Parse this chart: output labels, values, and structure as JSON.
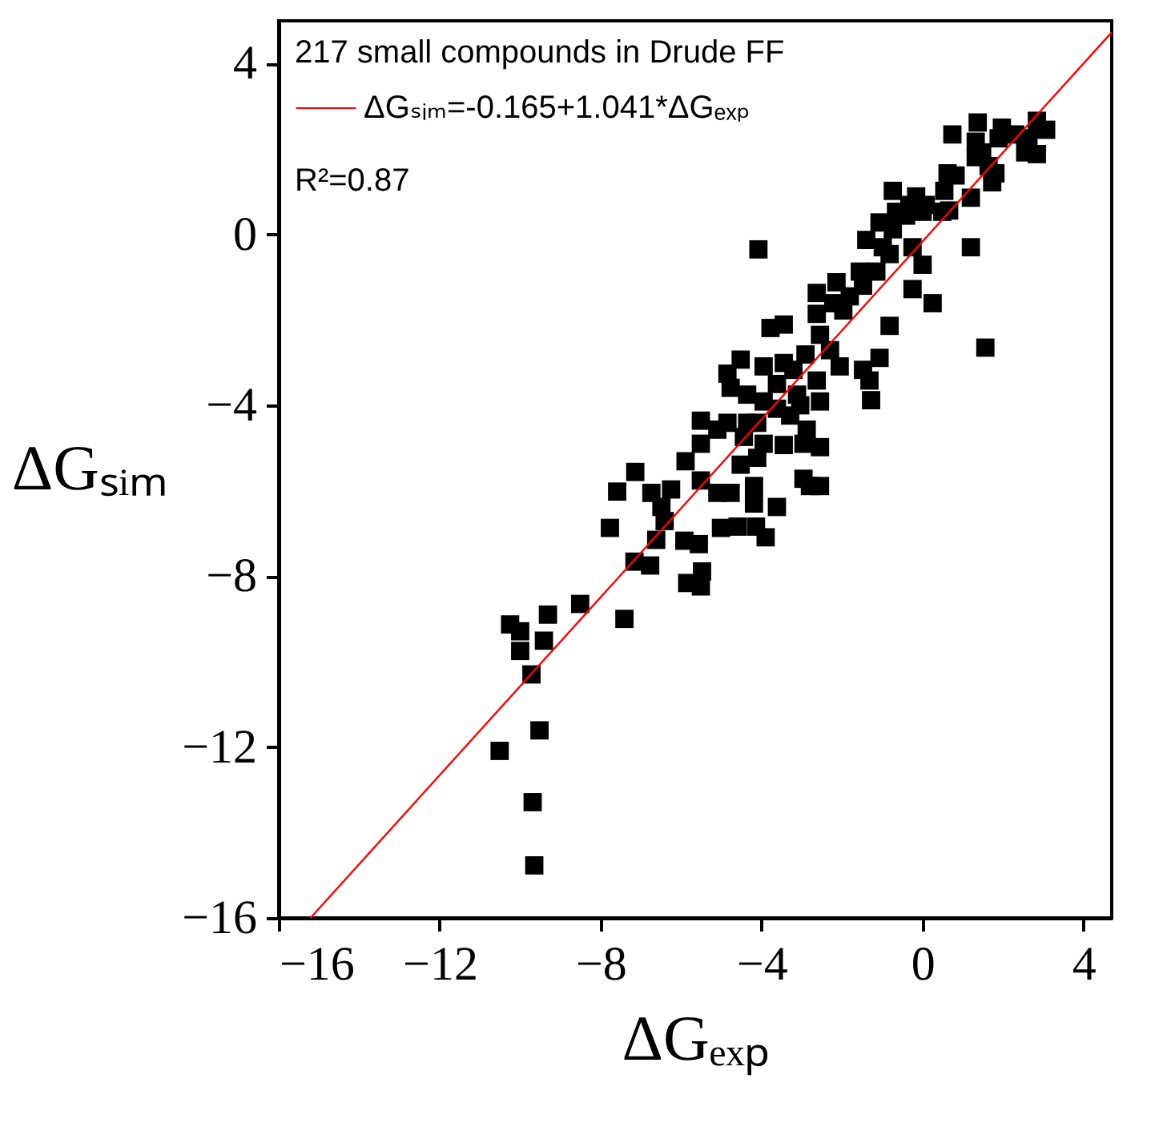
{
  "chart_data": {
    "type": "scatter",
    "legend_title": "217 small compounds in Drude FF",
    "xlabel": "ΔGₑₓₚ",
    "ylabel": "ΔGₛᵢₘ",
    "annotations": [
      "R²=0.87"
    ],
    "xlim": [
      -16,
      4.7
    ],
    "ylim": [
      -16,
      5
    ],
    "xticks": [
      -16,
      -12,
      -8,
      -4,
      0,
      4
    ],
    "yticks": [
      -16,
      -12,
      -8,
      -4,
      0,
      4
    ],
    "grid": false,
    "legend": "top left",
    "series": [
      {
        "type": "scatter",
        "marker": "square",
        "color": "#000000",
        "x": [
          0.74,
          1.37,
          1.97,
          2.3,
          2.84,
          3.07,
          2.84,
          2.55,
          1.32,
          1.32,
          1.64,
          1.73,
          1.2,
          0.62,
          0.82,
          0.54,
          0.66,
          1.2,
          1.56,
          -0.74,
          -0.16,
          0.08,
          -0.41,
          -1.07,
          -1.4,
          -0.74,
          -4.08,
          -0.25,
          0,
          -0.82,
          -1.15,
          -1.56,
          -0.25,
          0.25,
          -0.82,
          -1.07,
          -1.48,
          -1.32,
          -1.28,
          -2.14,
          -2.63,
          -1.97,
          -2.63,
          -3.78,
          -3.45,
          -2.55,
          -2.3,
          -2.06,
          -2.91,
          -4.52,
          -3.95,
          -3.45,
          -3.21,
          -2.63,
          -4.77,
          -4.36,
          -3.95,
          -3.62,
          -3.04,
          -2.55,
          -4.85,
          -4.36,
          -5.51,
          -5.51,
          -5.1,
          -3.95,
          -3.45,
          -2.96,
          -2.55,
          -4.11,
          -4.52,
          -4.77,
          -4.19,
          -2.96,
          -2.55,
          -2.8,
          -5.1,
          -4.19,
          -3.62,
          -5.89,
          -5.51,
          -7.14,
          -7.59,
          -6.74,
          -6.25,
          -6.49,
          -6.41,
          -7.77,
          -4.6,
          -4.14,
          -3.9,
          -5.01,
          -6.62,
          -5.92,
          -5.56,
          -7.16,
          -6.77,
          -5.48,
          -5.85,
          -5.51,
          -8.51,
          -7.41,
          -9.31,
          -10.25,
          -10.0,
          -10.0,
          -9.41,
          -9.72,
          -9.52,
          -10.51,
          -9.69,
          -9.65,
          -4.85,
          -3.62,
          -3.29,
          -2.88,
          -4.44,
          -4.11,
          -3.12,
          -0.66,
          -0.33,
          -0.99,
          -1.81,
          -1.48,
          -2.22,
          0,
          0.49,
          1.89,
          1.81,
          1.48,
          2.63
        ],
        "values": [
          2.34,
          2.62,
          2.5,
          2.34,
          2.66,
          2.45,
          1.88,
          1.92,
          2.17,
          1.81,
          1.6,
          1.22,
          0.86,
          1.43,
          1.38,
          1.02,
          0.56,
          -0.3,
          -2.65,
          1.02,
          0.89,
          0.69,
          0.44,
          0.28,
          -0.13,
          0.12,
          -0.35,
          -0.3,
          -0.71,
          -0.46,
          -0.87,
          -0.87,
          -1.28,
          -1.61,
          -2.14,
          -2.89,
          -3.17,
          -3.42,
          -3.88,
          -1.12,
          -1.37,
          -1.78,
          -1.86,
          -2.19,
          -2.11,
          -2.35,
          -2.71,
          -3.09,
          -2.81,
          -2.93,
          -3.09,
          -3.01,
          -3.17,
          -3.42,
          -3.59,
          -3.75,
          -3.91,
          -4.08,
          -4.0,
          -3.91,
          -4.41,
          -4.41,
          -4.36,
          -4.9,
          -4.57,
          -4.9,
          -4.93,
          -4.9,
          -4.98,
          -5.23,
          -5.39,
          -6.05,
          -5.89,
          -5.72,
          -5.89,
          -5.89,
          -6.05,
          -6.3,
          -6.38,
          -5.31,
          -5.76,
          -5.56,
          -6.02,
          -6.05,
          -5.97,
          -6.38,
          -6.71,
          -6.87,
          -6.84,
          -6.84,
          -7.09,
          -6.87,
          -7.15,
          -7.17,
          -7.25,
          -7.66,
          -7.75,
          -7.89,
          -8.16,
          -8.24,
          -8.65,
          -9.0,
          -8.9,
          -9.13,
          -9.29,
          -9.75,
          -9.51,
          -10.3,
          -11.61,
          -12.09,
          -13.29,
          -14.77,
          -3.26,
          -3.5,
          -4.24,
          -4.57,
          -4.74,
          -4.41,
          -3.75,
          0.53,
          0.69,
          -0.3,
          -1.45,
          -1.2,
          -1.61,
          0.53,
          0.53,
          2.25,
          1.43,
          1.92,
          2.25
        ]
      },
      {
        "type": "line",
        "name": "ΔGₛᵢₘ=-0.165+1.041*ΔGₑₓₚ",
        "color": "#ff0000",
        "x": [
          -15.21,
          4.7
        ],
        "values": [
          -16,
          4.73
        ]
      }
    ]
  }
}
